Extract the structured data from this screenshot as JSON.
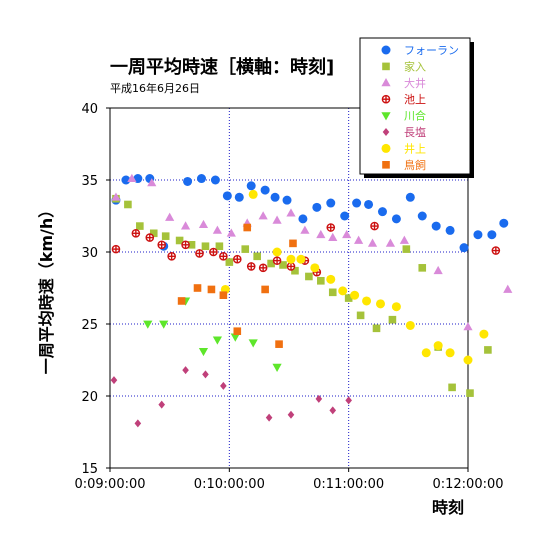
{
  "chart_data": {
    "type": "scatter",
    "title": "一周平均時速［横軸：時刻]",
    "subtitle": "平成16年6月26日",
    "xlabel": "時刻",
    "ylabel": "一周平均時速（km/h）",
    "x_ticks": [
      "0:09:00:00",
      "0:10:00:00",
      "0:11:00:00",
      "0:12:00:00"
    ],
    "x_range": [
      "0:09:00:00",
      "0:12:00:00"
    ],
    "ylim": [
      15,
      40
    ],
    "y_ticks": [
      15,
      20,
      25,
      30,
      35,
      40
    ],
    "grid": "dotted-blue",
    "legend_position": "top-right",
    "series": [
      {
        "name": "フォーラン",
        "color": "#1a6bee",
        "marker": "circle",
        "points": [
          [
            "0:09:03:00",
            33.6
          ],
          [
            "0:09:08:00",
            35.0
          ],
          [
            "0:09:14:00",
            35.1
          ],
          [
            "0:09:20:00",
            35.1
          ],
          [
            "0:09:27:00",
            30.4
          ],
          [
            "0:09:39:00",
            34.9
          ],
          [
            "0:09:46:00",
            35.1
          ],
          [
            "0:09:53:00",
            35.0
          ],
          [
            "0:09:59:00",
            33.9
          ],
          [
            "0:10:05:00",
            33.8
          ],
          [
            "0:10:11:00",
            34.6
          ],
          [
            "0:10:18:00",
            34.3
          ],
          [
            "0:10:23:00",
            33.8
          ],
          [
            "0:10:29:00",
            33.6
          ],
          [
            "0:10:37:00",
            32.3
          ],
          [
            "0:10:44:00",
            33.1
          ],
          [
            "0:10:51:00",
            33.4
          ],
          [
            "0:10:58:00",
            32.5
          ],
          [
            "0:11:04:00",
            33.4
          ],
          [
            "0:11:10:00",
            33.3
          ],
          [
            "0:11:17:00",
            32.8
          ],
          [
            "0:11:24:00",
            32.3
          ],
          [
            "0:11:31:00",
            33.8
          ],
          [
            "0:11:37:00",
            32.5
          ],
          [
            "0:11:44:00",
            31.8
          ],
          [
            "0:11:51:00",
            31.5
          ],
          [
            "0:11:58:00",
            30.3
          ],
          [
            "0:12:05:00",
            31.2
          ],
          [
            "0:12:12:00",
            31.2
          ],
          [
            "0:12:18:00",
            32.0
          ]
        ]
      },
      {
        "name": "家入",
        "color": "#a5c23a",
        "marker": "square",
        "points": [
          [
            "0:09:03:00",
            33.7
          ],
          [
            "0:09:09:00",
            33.3
          ],
          [
            "0:09:15:00",
            31.8
          ],
          [
            "0:09:22:00",
            31.3
          ],
          [
            "0:09:28:00",
            31.1
          ],
          [
            "0:09:35:00",
            30.8
          ],
          [
            "0:09:41:00",
            30.5
          ],
          [
            "0:09:48:00",
            30.4
          ],
          [
            "0:09:55:00",
            30.4
          ],
          [
            "0:10:00:00",
            29.3
          ],
          [
            "0:10:08:00",
            30.2
          ],
          [
            "0:10:14:00",
            29.7
          ],
          [
            "0:10:21:00",
            29.2
          ],
          [
            "0:10:27:00",
            29.1
          ],
          [
            "0:10:33:00",
            28.7
          ],
          [
            "0:10:40:00",
            28.3
          ],
          [
            "0:10:46:00",
            28.0
          ],
          [
            "0:10:52:00",
            27.2
          ],
          [
            "0:11:00:00",
            26.8
          ],
          [
            "0:11:06:00",
            25.6
          ],
          [
            "0:11:14:00",
            24.7
          ],
          [
            "0:11:22:00",
            25.3
          ],
          [
            "0:11:29:00",
            30.2
          ],
          [
            "0:11:37:00",
            28.9
          ],
          [
            "0:11:45:00",
            23.4
          ],
          [
            "0:11:52:00",
            20.6
          ],
          [
            "0:12:01:00",
            20.2
          ],
          [
            "0:12:10:00",
            23.2
          ]
        ]
      },
      {
        "name": "大井",
        "color": "#d98ad9",
        "marker": "triangle",
        "points": [
          [
            "0:09:03:00",
            33.8
          ],
          [
            "0:09:11:00",
            35.1
          ],
          [
            "0:09:21:00",
            34.8
          ],
          [
            "0:09:30:00",
            32.4
          ],
          [
            "0:09:38:00",
            31.8
          ],
          [
            "0:09:47:00",
            31.9
          ],
          [
            "0:09:54:00",
            31.5
          ],
          [
            "0:10:01:00",
            31.3
          ],
          [
            "0:10:09:00",
            32.0
          ],
          [
            "0:10:17:00",
            32.5
          ],
          [
            "0:10:24:00",
            32.2
          ],
          [
            "0:10:31:00",
            32.7
          ],
          [
            "0:10:38:00",
            31.5
          ],
          [
            "0:10:46:00",
            31.2
          ],
          [
            "0:10:52:00",
            31.0
          ],
          [
            "0:10:59:00",
            31.2
          ],
          [
            "0:11:05:00",
            30.8
          ],
          [
            "0:11:12:00",
            30.6
          ],
          [
            "0:11:21:00",
            30.6
          ],
          [
            "0:11:28:00",
            30.8
          ],
          [
            "0:11:45:00",
            28.7
          ],
          [
            "0:12:00:00",
            24.8
          ],
          [
            "0:12:20:00",
            27.4
          ]
        ]
      },
      {
        "name": "池上",
        "color": "#cc1111",
        "marker": "cross-circle",
        "points": [
          [
            "0:09:03:00",
            30.2
          ],
          [
            "0:09:13:00",
            31.3
          ],
          [
            "0:09:20:00",
            31.0
          ],
          [
            "0:09:26:00",
            30.5
          ],
          [
            "0:09:31:00",
            29.7
          ],
          [
            "0:09:38:00",
            30.5
          ],
          [
            "0:09:45:00",
            29.9
          ],
          [
            "0:09:52:00",
            30.0
          ],
          [
            "0:09:57:00",
            29.7
          ],
          [
            "0:10:04:00",
            29.5
          ],
          [
            "0:10:11:00",
            29.0
          ],
          [
            "0:10:17:00",
            28.9
          ],
          [
            "0:10:24:00",
            29.4
          ],
          [
            "0:10:31:00",
            29.0
          ],
          [
            "0:10:38:00",
            29.4
          ],
          [
            "0:10:44:00",
            28.6
          ],
          [
            "0:10:51:00",
            31.7
          ],
          [
            "0:11:13:00",
            31.8
          ],
          [
            "0:12:14:00",
            30.1
          ]
        ]
      },
      {
        "name": "川合",
        "color": "#5ee62b",
        "marker": "triangle-down",
        "points": [
          [
            "0:09:19:00",
            25.0
          ],
          [
            "0:09:27:00",
            25.0
          ],
          [
            "0:09:38:00",
            26.6
          ],
          [
            "0:09:47:00",
            23.1
          ],
          [
            "0:09:54:00",
            23.9
          ],
          [
            "0:10:03:00",
            24.1
          ],
          [
            "0:10:12:00",
            23.7
          ],
          [
            "0:10:24:00",
            22.0
          ]
        ]
      },
      {
        "name": "長塩",
        "color": "#c0407a",
        "marker": "diamond",
        "points": [
          [
            "0:09:02:00",
            21.1
          ],
          [
            "0:09:14:00",
            18.1
          ],
          [
            "0:09:26:00",
            19.4
          ],
          [
            "0:09:38:00",
            21.8
          ],
          [
            "0:09:48:00",
            21.5
          ],
          [
            "0:09:57:00",
            20.7
          ],
          [
            "0:10:20:00",
            18.5
          ],
          [
            "0:10:31:00",
            18.7
          ],
          [
            "0:10:45:00",
            19.8
          ],
          [
            "0:10:52:00",
            19.0
          ],
          [
            "0:11:00:00",
            19.7
          ]
        ]
      },
      {
        "name": "井上",
        "color": "#ffe600",
        "marker": "circle",
        "points": [
          [
            "0:09:58:00",
            27.4
          ],
          [
            "0:10:12:00",
            34.0
          ],
          [
            "0:10:24:00",
            30.0
          ],
          [
            "0:10:31:00",
            29.5
          ],
          [
            "0:10:36:00",
            29.5
          ],
          [
            "0:10:43:00",
            28.9
          ],
          [
            "0:10:51:00",
            28.1
          ],
          [
            "0:10:57:00",
            27.3
          ],
          [
            "0:11:03:00",
            27.0
          ],
          [
            "0:11:09:00",
            26.6
          ],
          [
            "0:11:16:00",
            26.4
          ],
          [
            "0:11:24:00",
            26.2
          ],
          [
            "0:11:31:00",
            24.9
          ],
          [
            "0:11:39:00",
            23.0
          ],
          [
            "0:11:45:00",
            23.5
          ],
          [
            "0:11:51:00",
            23.0
          ],
          [
            "0:12:00:00",
            22.5
          ],
          [
            "0:12:08:00",
            24.3
          ]
        ]
      },
      {
        "name": "鳥飼",
        "color": "#f07010",
        "marker": "square",
        "points": [
          [
            "0:09:36:00",
            26.6
          ],
          [
            "0:09:44:00",
            27.5
          ],
          [
            "0:09:51:00",
            27.4
          ],
          [
            "0:09:57:00",
            27.0
          ],
          [
            "0:10:04:00",
            24.5
          ],
          [
            "0:10:09:00",
            31.7
          ],
          [
            "0:10:18:00",
            27.4
          ],
          [
            "0:10:25:00",
            23.6
          ],
          [
            "0:10:32:00",
            30.6
          ]
        ]
      }
    ]
  }
}
